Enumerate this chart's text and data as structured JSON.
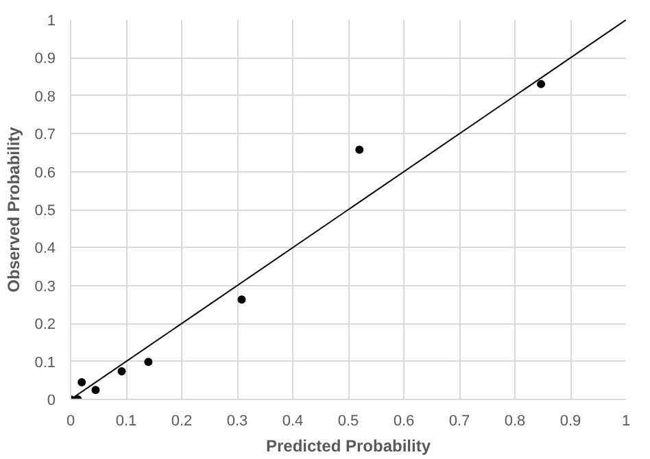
{
  "chart_data": {
    "type": "scatter",
    "xlabel": "Predicted Probability",
    "ylabel": "Observed Probability",
    "xlim": [
      0,
      1
    ],
    "ylim": [
      0,
      1
    ],
    "xticks": [
      0,
      0.1,
      0.2,
      0.3,
      0.4,
      0.5,
      0.6,
      0.7,
      0.8,
      0.9,
      1
    ],
    "yticks": [
      0,
      0.1,
      0.2,
      0.3,
      0.4,
      0.5,
      0.6,
      0.7,
      0.8,
      0.9,
      1
    ],
    "grid": true,
    "series": [
      {
        "color": "#000000",
        "marker": "circle",
        "x": [
          0.0,
          0.013,
          0.02,
          0.045,
          0.092,
          0.14,
          0.308,
          0.52,
          0.847
        ],
        "values": [
          0.0,
          0.0,
          0.045,
          0.025,
          0.074,
          0.099,
          0.263,
          0.658,
          0.831
        ]
      },
      {
        "type": "line",
        "color": "#000000",
        "marker": "none",
        "x": [
          0,
          1
        ],
        "values": [
          0,
          1
        ]
      }
    ]
  }
}
